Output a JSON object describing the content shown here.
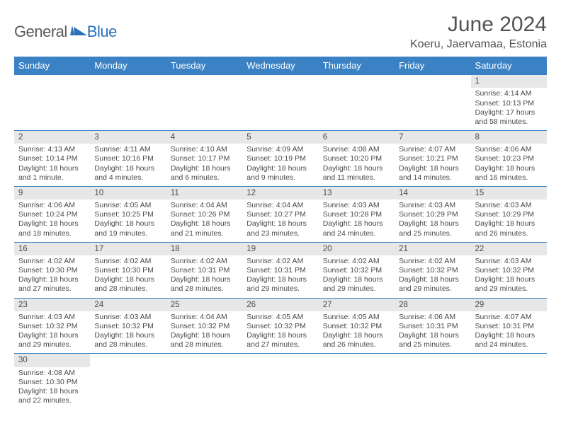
{
  "logo": {
    "general": "General",
    "blue": "Blue"
  },
  "title": "June 2024",
  "location": "Koeru, Jaervamaa, Estonia",
  "colors": {
    "header_bg": "#3b82c4",
    "header_text": "#ffffff",
    "daynum_bg": "#e7e7e7",
    "border": "#3b82c4",
    "text": "#4a4a4a",
    "logo_gray": "#5a5a5a",
    "logo_blue": "#2a71b8"
  },
  "day_headers": [
    "Sunday",
    "Monday",
    "Tuesday",
    "Wednesday",
    "Thursday",
    "Friday",
    "Saturday"
  ],
  "weeks": [
    [
      null,
      null,
      null,
      null,
      null,
      null,
      {
        "n": "1",
        "sr": "Sunrise: 4:14 AM",
        "ss": "Sunset: 10:13 PM",
        "d1": "Daylight: 17 hours",
        "d2": "and 58 minutes."
      }
    ],
    [
      {
        "n": "2",
        "sr": "Sunrise: 4:13 AM",
        "ss": "Sunset: 10:14 PM",
        "d1": "Daylight: 18 hours",
        "d2": "and 1 minute."
      },
      {
        "n": "3",
        "sr": "Sunrise: 4:11 AM",
        "ss": "Sunset: 10:16 PM",
        "d1": "Daylight: 18 hours",
        "d2": "and 4 minutes."
      },
      {
        "n": "4",
        "sr": "Sunrise: 4:10 AM",
        "ss": "Sunset: 10:17 PM",
        "d1": "Daylight: 18 hours",
        "d2": "and 6 minutes."
      },
      {
        "n": "5",
        "sr": "Sunrise: 4:09 AM",
        "ss": "Sunset: 10:19 PM",
        "d1": "Daylight: 18 hours",
        "d2": "and 9 minutes."
      },
      {
        "n": "6",
        "sr": "Sunrise: 4:08 AM",
        "ss": "Sunset: 10:20 PM",
        "d1": "Daylight: 18 hours",
        "d2": "and 11 minutes."
      },
      {
        "n": "7",
        "sr": "Sunrise: 4:07 AM",
        "ss": "Sunset: 10:21 PM",
        "d1": "Daylight: 18 hours",
        "d2": "and 14 minutes."
      },
      {
        "n": "8",
        "sr": "Sunrise: 4:06 AM",
        "ss": "Sunset: 10:23 PM",
        "d1": "Daylight: 18 hours",
        "d2": "and 16 minutes."
      }
    ],
    [
      {
        "n": "9",
        "sr": "Sunrise: 4:06 AM",
        "ss": "Sunset: 10:24 PM",
        "d1": "Daylight: 18 hours",
        "d2": "and 18 minutes."
      },
      {
        "n": "10",
        "sr": "Sunrise: 4:05 AM",
        "ss": "Sunset: 10:25 PM",
        "d1": "Daylight: 18 hours",
        "d2": "and 19 minutes."
      },
      {
        "n": "11",
        "sr": "Sunrise: 4:04 AM",
        "ss": "Sunset: 10:26 PM",
        "d1": "Daylight: 18 hours",
        "d2": "and 21 minutes."
      },
      {
        "n": "12",
        "sr": "Sunrise: 4:04 AM",
        "ss": "Sunset: 10:27 PM",
        "d1": "Daylight: 18 hours",
        "d2": "and 23 minutes."
      },
      {
        "n": "13",
        "sr": "Sunrise: 4:03 AM",
        "ss": "Sunset: 10:28 PM",
        "d1": "Daylight: 18 hours",
        "d2": "and 24 minutes."
      },
      {
        "n": "14",
        "sr": "Sunrise: 4:03 AM",
        "ss": "Sunset: 10:29 PM",
        "d1": "Daylight: 18 hours",
        "d2": "and 25 minutes."
      },
      {
        "n": "15",
        "sr": "Sunrise: 4:03 AM",
        "ss": "Sunset: 10:29 PM",
        "d1": "Daylight: 18 hours",
        "d2": "and 26 minutes."
      }
    ],
    [
      {
        "n": "16",
        "sr": "Sunrise: 4:02 AM",
        "ss": "Sunset: 10:30 PM",
        "d1": "Daylight: 18 hours",
        "d2": "and 27 minutes."
      },
      {
        "n": "17",
        "sr": "Sunrise: 4:02 AM",
        "ss": "Sunset: 10:30 PM",
        "d1": "Daylight: 18 hours",
        "d2": "and 28 minutes."
      },
      {
        "n": "18",
        "sr": "Sunrise: 4:02 AM",
        "ss": "Sunset: 10:31 PM",
        "d1": "Daylight: 18 hours",
        "d2": "and 28 minutes."
      },
      {
        "n": "19",
        "sr": "Sunrise: 4:02 AM",
        "ss": "Sunset: 10:31 PM",
        "d1": "Daylight: 18 hours",
        "d2": "and 29 minutes."
      },
      {
        "n": "20",
        "sr": "Sunrise: 4:02 AM",
        "ss": "Sunset: 10:32 PM",
        "d1": "Daylight: 18 hours",
        "d2": "and 29 minutes."
      },
      {
        "n": "21",
        "sr": "Sunrise: 4:02 AM",
        "ss": "Sunset: 10:32 PM",
        "d1": "Daylight: 18 hours",
        "d2": "and 29 minutes."
      },
      {
        "n": "22",
        "sr": "Sunrise: 4:03 AM",
        "ss": "Sunset: 10:32 PM",
        "d1": "Daylight: 18 hours",
        "d2": "and 29 minutes."
      }
    ],
    [
      {
        "n": "23",
        "sr": "Sunrise: 4:03 AM",
        "ss": "Sunset: 10:32 PM",
        "d1": "Daylight: 18 hours",
        "d2": "and 29 minutes."
      },
      {
        "n": "24",
        "sr": "Sunrise: 4:03 AM",
        "ss": "Sunset: 10:32 PM",
        "d1": "Daylight: 18 hours",
        "d2": "and 28 minutes."
      },
      {
        "n": "25",
        "sr": "Sunrise: 4:04 AM",
        "ss": "Sunset: 10:32 PM",
        "d1": "Daylight: 18 hours",
        "d2": "and 28 minutes."
      },
      {
        "n": "26",
        "sr": "Sunrise: 4:05 AM",
        "ss": "Sunset: 10:32 PM",
        "d1": "Daylight: 18 hours",
        "d2": "and 27 minutes."
      },
      {
        "n": "27",
        "sr": "Sunrise: 4:05 AM",
        "ss": "Sunset: 10:32 PM",
        "d1": "Daylight: 18 hours",
        "d2": "and 26 minutes."
      },
      {
        "n": "28",
        "sr": "Sunrise: 4:06 AM",
        "ss": "Sunset: 10:31 PM",
        "d1": "Daylight: 18 hours",
        "d2": "and 25 minutes."
      },
      {
        "n": "29",
        "sr": "Sunrise: 4:07 AM",
        "ss": "Sunset: 10:31 PM",
        "d1": "Daylight: 18 hours",
        "d2": "and 24 minutes."
      }
    ],
    [
      {
        "n": "30",
        "sr": "Sunrise: 4:08 AM",
        "ss": "Sunset: 10:30 PM",
        "d1": "Daylight: 18 hours",
        "d2": "and 22 minutes."
      },
      null,
      null,
      null,
      null,
      null,
      null
    ]
  ]
}
